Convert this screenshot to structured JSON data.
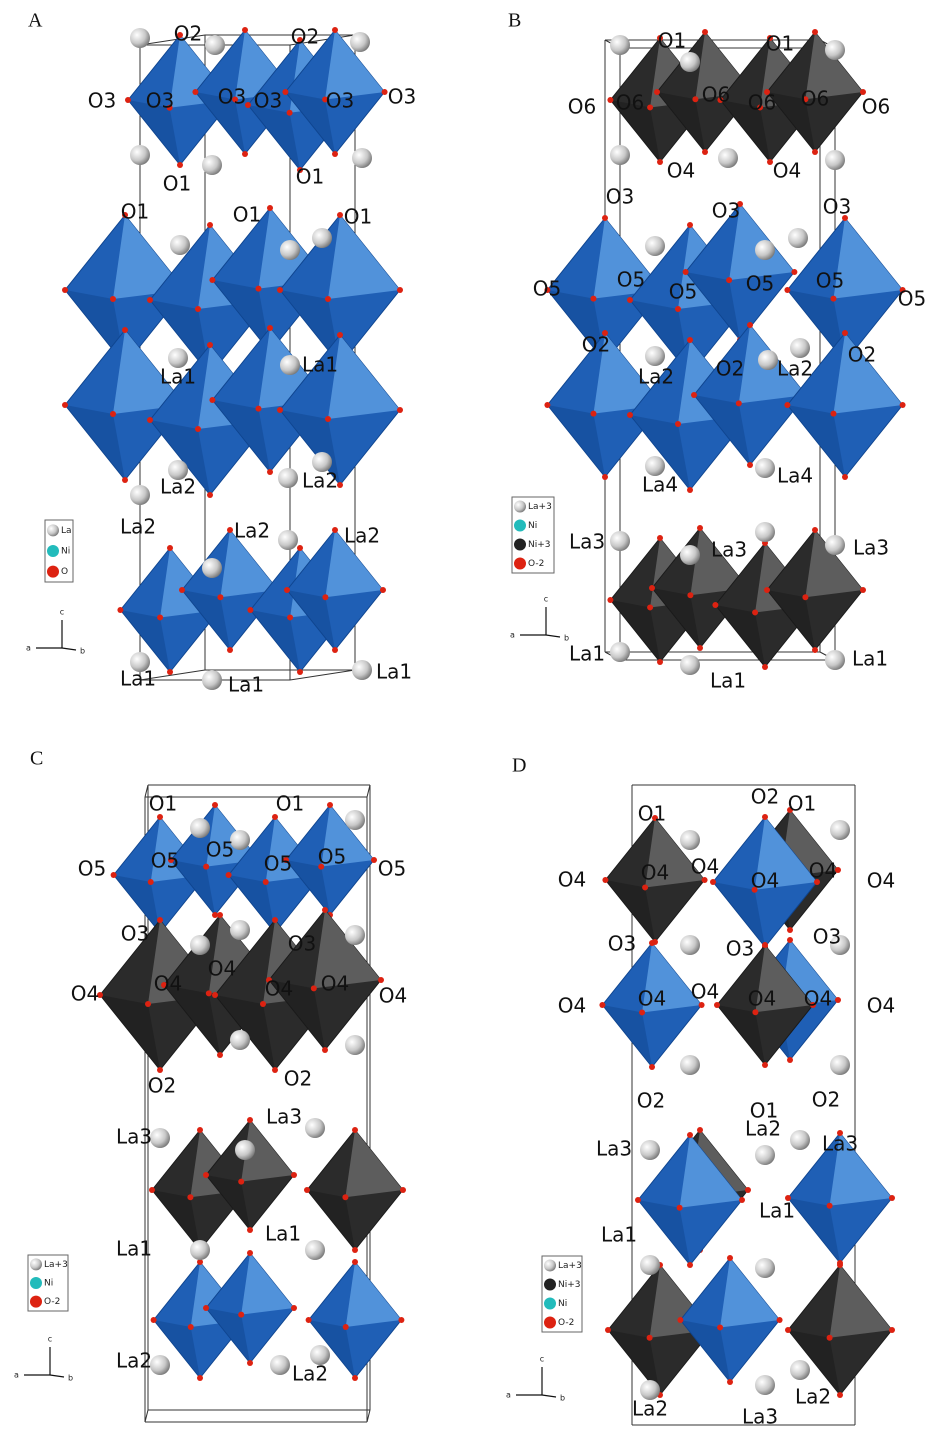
{
  "panels": [
    {
      "letter": "A",
      "labels": [
        "O2",
        "O2",
        "O3",
        "O3",
        "O3",
        "O3",
        "O3",
        "O3",
        "O1",
        "O1",
        "O1",
        "O1",
        "O1",
        "La1",
        "La1",
        "La2",
        "La2",
        "La2",
        "La2",
        "La2",
        "La1",
        "La1",
        "La1"
      ],
      "legend": [
        "La",
        "Ni",
        "O"
      ],
      "axes": [
        "c",
        "a",
        "b"
      ]
    },
    {
      "letter": "B",
      "labels": [
        "O1",
        "O1",
        "O6",
        "O6",
        "O6",
        "O6",
        "O6",
        "O6",
        "O4",
        "O4",
        "O3",
        "O3",
        "O3",
        "O5",
        "O5",
        "O5",
        "O5",
        "O5",
        "O5",
        "O2",
        "O2",
        "O2",
        "La2",
        "La2",
        "La4",
        "La4",
        "La3",
        "La3",
        "La3",
        "La1",
        "La1",
        "La1"
      ],
      "legend": [
        "La+3",
        "Ni",
        "Ni+3",
        "O-2"
      ],
      "axes": [
        "c",
        "a",
        "b"
      ]
    },
    {
      "letter": "C",
      "labels": [
        "O1",
        "O1",
        "O5",
        "O5",
        "O5",
        "O5",
        "O5",
        "O5",
        "O3",
        "O3",
        "O4",
        "O4",
        "O4",
        "O4",
        "O4",
        "O4",
        "O2",
        "O2",
        "La3",
        "La3",
        "La1",
        "La1",
        "La2",
        "La2"
      ],
      "legend": [
        "La+3",
        "Ni",
        "O-2"
      ],
      "axes": [
        "c",
        "a",
        "b"
      ]
    },
    {
      "letter": "D",
      "labels": [
        "O2",
        "O1",
        "O1",
        "O4",
        "O4",
        "O4",
        "O4",
        "O4",
        "O4",
        "O3",
        "O3",
        "O3",
        "O4",
        "O4",
        "O4",
        "O4",
        "O4",
        "O4",
        "O1",
        "O2",
        "O2",
        "La2",
        "La3",
        "La3",
        "La1",
        "La1",
        "La2",
        "La3",
        "La2"
      ],
      "legend": [
        "La+3",
        "Ni+3",
        "Ni",
        "O-2"
      ],
      "axes": [
        "c",
        "a",
        "b"
      ]
    }
  ]
}
